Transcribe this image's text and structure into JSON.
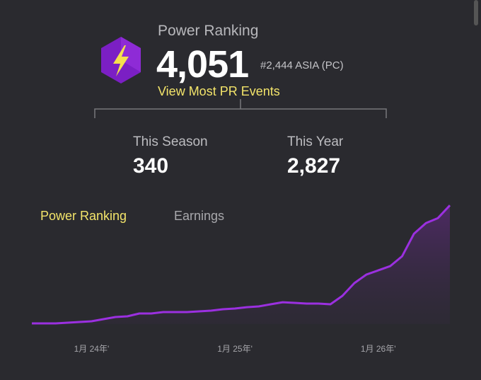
{
  "header": {
    "title": "Power Ranking",
    "value": "4,051",
    "rank": "#2,444 ASIA (PC)",
    "link": "View Most PR Events"
  },
  "stats": [
    {
      "label": "This Season",
      "value": "340"
    },
    {
      "label": "This Year",
      "value": "2,827"
    }
  ],
  "tabs": [
    "Power Ranking",
    "Earnings"
  ],
  "chart_data": {
    "type": "line",
    "categories": [
      null,
      null,
      null,
      null,
      null,
      "1月 24年'",
      null,
      null,
      null,
      null,
      null,
      null,
      null,
      null,
      null,
      null,
      null,
      "1月 25年'",
      null,
      null,
      null,
      null,
      null,
      null,
      null,
      null,
      null,
      null,
      null,
      "1月 26年'",
      null,
      null,
      null,
      null,
      null,
      null
    ],
    "values": [
      24,
      24,
      24,
      48,
      72,
      96,
      169,
      241,
      265,
      362,
      362,
      410,
      410,
      410,
      434,
      458,
      506,
      530,
      578,
      603,
      675,
      747,
      723,
      699,
      699,
      675,
      964,
      1398,
      1687,
      1832,
      1976,
      2314,
      3085,
      3446,
      3615,
      4051
    ],
    "color": "#9b30e0",
    "ylim": [
      0,
      4200
    ]
  }
}
